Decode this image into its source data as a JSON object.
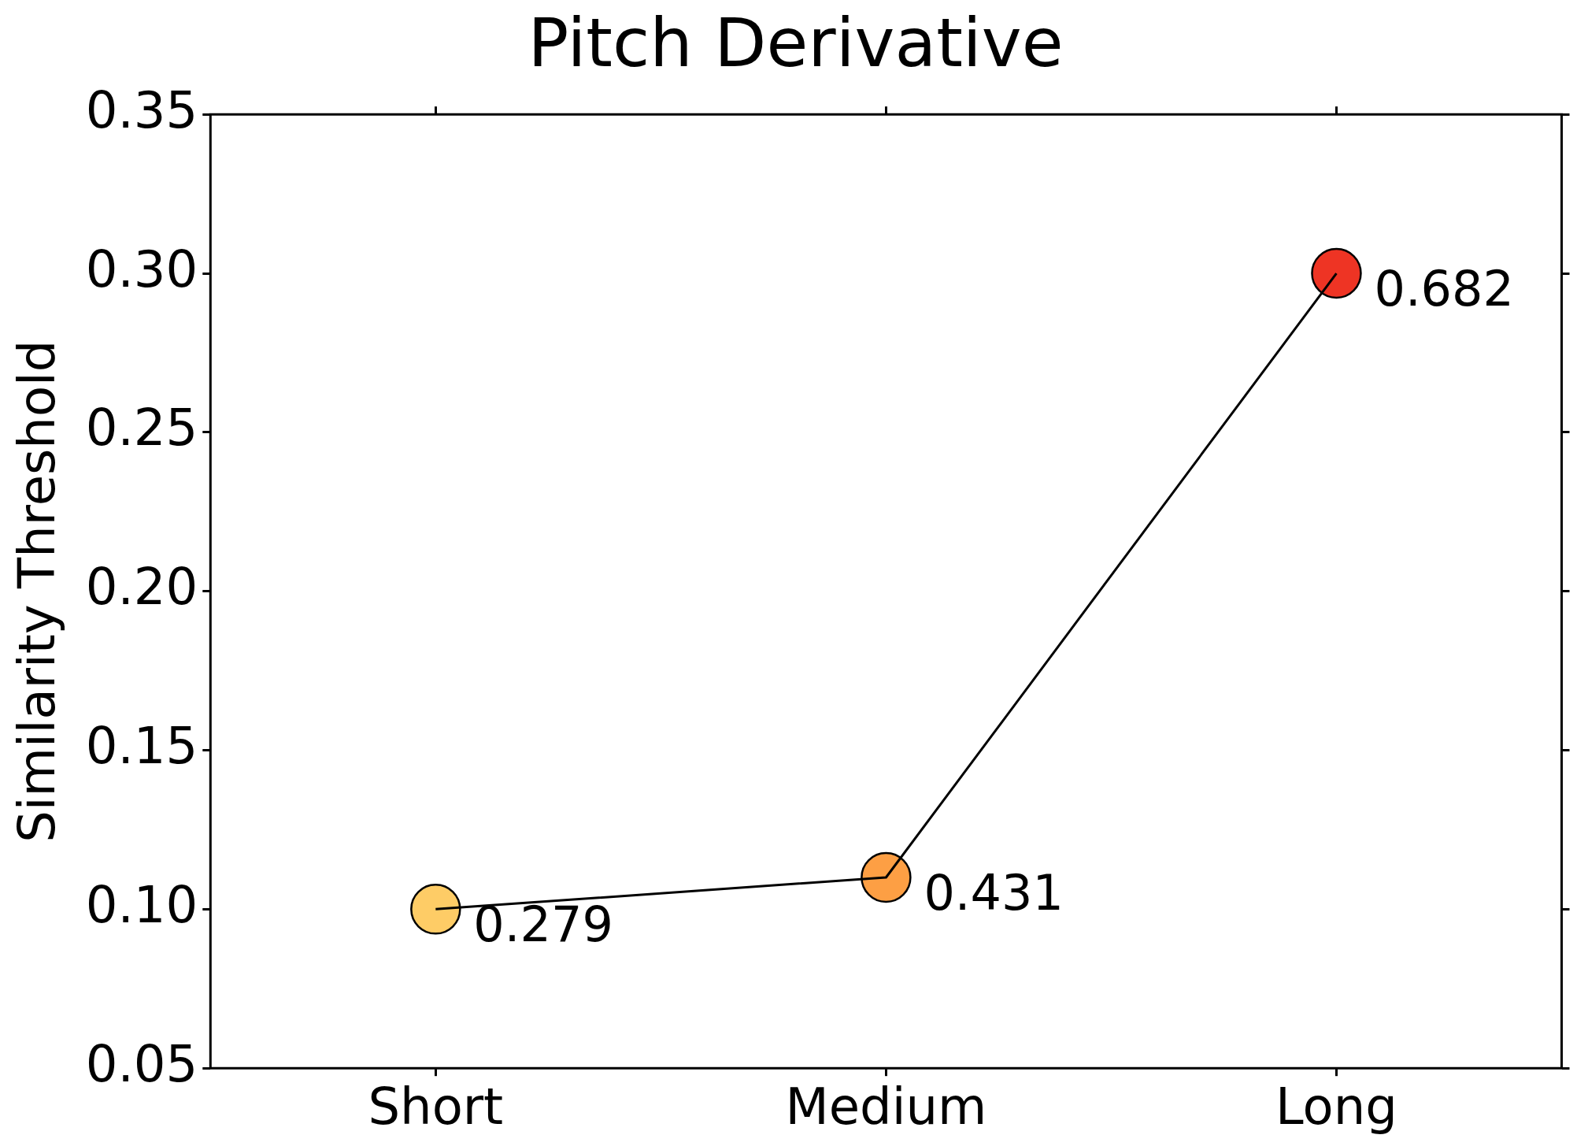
{
  "chart_data": {
    "type": "line",
    "title": "Pitch Derivative",
    "ylabel": "Similarity Threshold",
    "categories": [
      "Short",
      "Medium",
      "Long"
    ],
    "series": [
      {
        "color": "#000000",
        "marker": "none",
        "values": [
          0.1,
          0.11,
          0.3
        ]
      },
      {
        "type": "scatter",
        "colors": [
          "#fecc66",
          "#fd9f44",
          "#ee3424"
        ],
        "marker": "circle",
        "values": [
          0.1,
          0.11,
          0.3
        ]
      }
    ],
    "ylim": [
      0.05,
      0.35
    ],
    "yticks": [
      {
        "value": 0.05,
        "label": "0.05"
      },
      {
        "value": 0.1,
        "label": "0.10"
      },
      {
        "value": 0.15,
        "label": "0.15"
      },
      {
        "value": 0.2,
        "label": "0.20"
      },
      {
        "value": 0.25,
        "label": "0.25"
      },
      {
        "value": 0.3,
        "label": "0.30"
      },
      {
        "value": 0.35,
        "label": "0.35"
      }
    ],
    "line_style": "solid",
    "grid": false,
    "legend": false,
    "annotations": [
      {
        "text": "0.279",
        "x": "Short",
        "y": 0.1
      },
      {
        "text": "0.431",
        "x": "Medium",
        "y": 0.11
      },
      {
        "text": "0.682",
        "x": "Long",
        "y": 0.3
      }
    ]
  }
}
